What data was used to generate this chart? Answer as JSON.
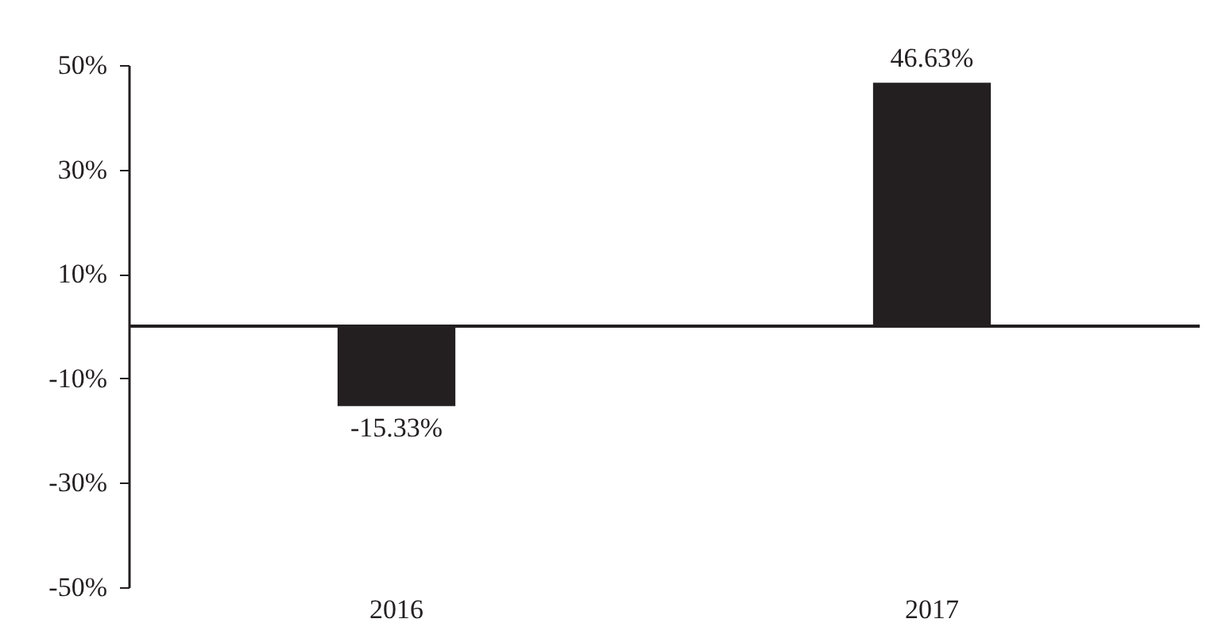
{
  "chart_data": {
    "type": "bar",
    "categories": [
      "2016",
      "2017"
    ],
    "values": [
      -15.33,
      46.63
    ],
    "value_labels": [
      "-15.33%",
      "46.63%"
    ],
    "color": "#231f20",
    "ylim": [
      -50,
      50
    ],
    "yticks": [
      {
        "value": -50,
        "label": "-50%"
      },
      {
        "value": -30,
        "label": "-30%"
      },
      {
        "value": -10,
        "label": "-10%"
      },
      {
        "value": 10,
        "label": "10%"
      },
      {
        "value": 30,
        "label": "30%"
      },
      {
        "value": 50,
        "label": "50%"
      }
    ],
    "grid": false
  }
}
